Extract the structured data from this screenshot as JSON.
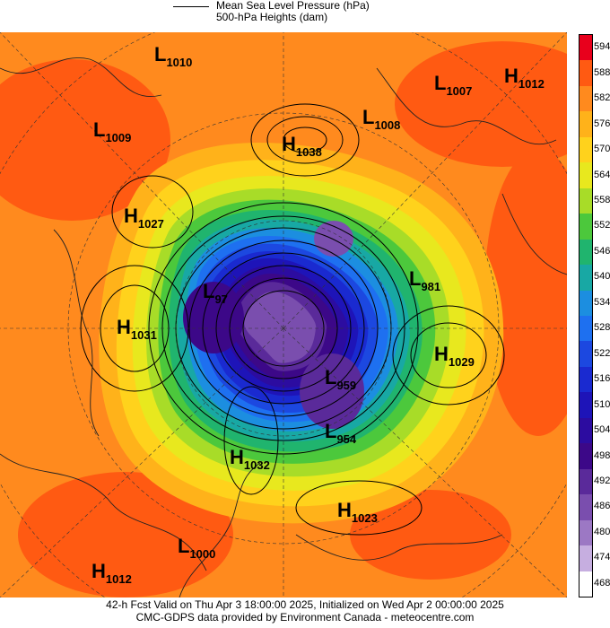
{
  "legend": {
    "mslp": "Mean Sea Level Pressure (hPa)",
    "heights": "500-hPa Heights (dam)"
  },
  "colorbar": {
    "values": [
      "594",
      "588",
      "582",
      "576",
      "570",
      "564",
      "558",
      "552",
      "546",
      "540",
      "534",
      "528",
      "522",
      "516",
      "510",
      "504",
      "498",
      "492",
      "486",
      "480",
      "474",
      "468"
    ],
    "colors": [
      "#e8001c",
      "#ff5a12",
      "#ff8a1e",
      "#ffb21a",
      "#ffd21c",
      "#e8e81e",
      "#a8dc28",
      "#4cc83c",
      "#20b46e",
      "#18a8a4",
      "#1c8ee0",
      "#1e70f0",
      "#1c48e0",
      "#1a2ad0",
      "#1e14b8",
      "#2c0ca0",
      "#3c0888",
      "#5a2a9a",
      "#7a4eae",
      "#9c78c4",
      "#c6aee0",
      "#ffffff"
    ]
  },
  "centers": [
    {
      "type": "L",
      "value": "1010"
    },
    {
      "type": "L",
      "value": "1007"
    },
    {
      "type": "H",
      "value": "1012"
    },
    {
      "type": "L",
      "value": "1008"
    },
    {
      "type": "H",
      "value": "1038"
    },
    {
      "type": "L",
      "value": "1009"
    },
    {
      "type": "H",
      "value": "1027"
    },
    {
      "type": "L",
      "value": "981"
    },
    {
      "type": "H",
      "value": "1031"
    },
    {
      "type": "L",
      "value": "97"
    },
    {
      "type": "H",
      "value": "1029"
    },
    {
      "type": "L",
      "value": "959"
    },
    {
      "type": "L",
      "value": "954"
    },
    {
      "type": "H",
      "value": "1032"
    },
    {
      "type": "H",
      "value": "1023"
    },
    {
      "type": "L",
      "value": "1000"
    },
    {
      "type": "H",
      "value": "1012"
    }
  ],
  "footer": {
    "line1": "42-h Fcst Valid on Thu Apr  3 18:00:00 2025, Initialized on Wed Apr  2 00:00:00 2025",
    "line2": "CMC-GDPS data provided by Environment Canada - meteocentre.com"
  }
}
